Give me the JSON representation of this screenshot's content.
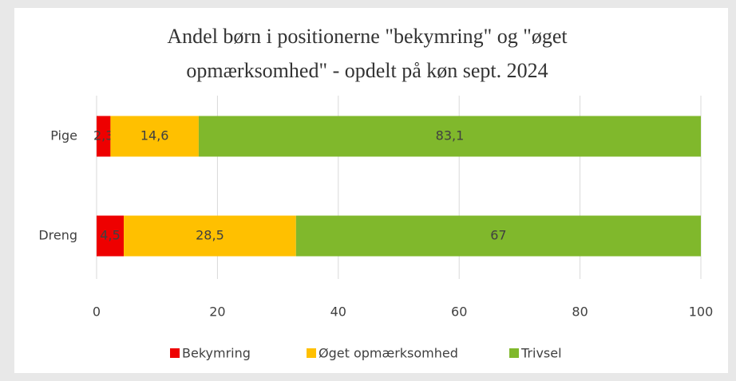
{
  "chart_data": {
    "type": "stacked-bar-horizontal",
    "title": "Andel børn i positionerne \"bekymring\" og \"øget opmærksomhed\" - opdelt på køn sept. 2024",
    "categories": [
      "Pige",
      "Dreng"
    ],
    "series": [
      {
        "name": "Bekymring",
        "color": "#ee0000",
        "values": [
          2.3,
          4.5
        ],
        "value_labels": [
          "2,3",
          "4,5"
        ]
      },
      {
        "name": "Øget opmærksomhed",
        "color": "#ffc000",
        "values": [
          14.6,
          28.5
        ],
        "value_labels": [
          "14,6",
          "28,5"
        ]
      },
      {
        "name": "Trivsel",
        "color": "#80b82c",
        "values": [
          83.1,
          67
        ],
        "value_labels": [
          "83,1",
          "67"
        ]
      }
    ],
    "xlim": [
      0,
      100
    ],
    "xticks": [
      0,
      20,
      40,
      60,
      80,
      100
    ],
    "grid": true,
    "legend": "bottom"
  }
}
